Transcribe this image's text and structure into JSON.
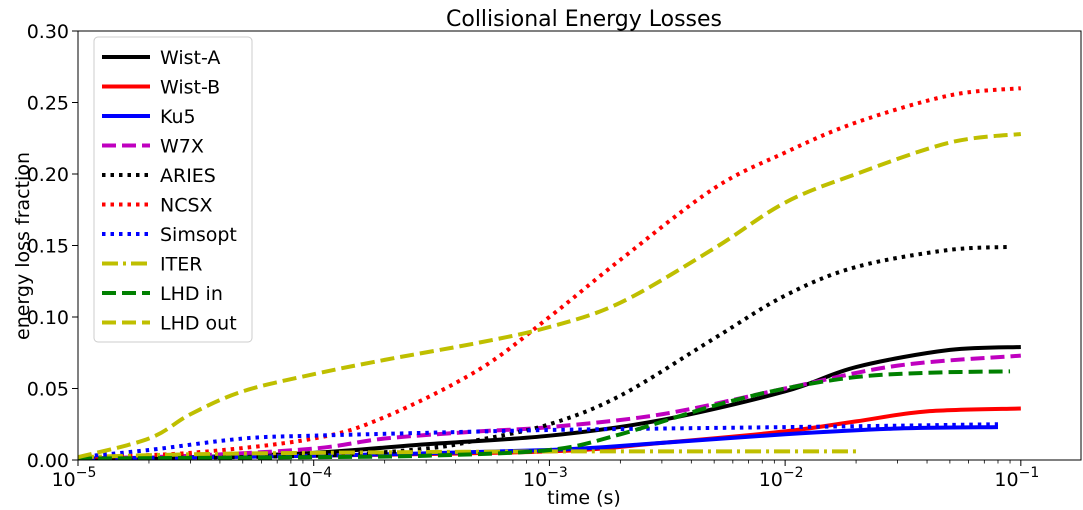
{
  "chart_data": {
    "type": "line",
    "title": "Collisional Energy Losses",
    "xlabel": "time (s)",
    "ylabel": "energy loss fraction",
    "xscale": "log",
    "xlim": [
      1e-05,
      0.18
    ],
    "ylim": [
      0.0,
      0.3
    ],
    "grid": false,
    "legend_position": "top-left",
    "x_ticks": [
      {
        "value": 1e-05,
        "base": "10",
        "exp": "−5"
      },
      {
        "value": 0.0001,
        "base": "10",
        "exp": "−4"
      },
      {
        "value": 0.001,
        "base": "10",
        "exp": "−3"
      },
      {
        "value": 0.01,
        "base": "10",
        "exp": "−2"
      },
      {
        "value": 0.1,
        "base": "10",
        "exp": "−1"
      }
    ],
    "y_ticks": [
      {
        "value": 0.0,
        "label": "0.00"
      },
      {
        "value": 0.05,
        "label": "0.05"
      },
      {
        "value": 0.1,
        "label": "0.10"
      },
      {
        "value": 0.15,
        "label": "0.15"
      },
      {
        "value": 0.2,
        "label": "0.20"
      },
      {
        "value": 0.25,
        "label": "0.25"
      },
      {
        "value": 0.3,
        "label": "0.30"
      }
    ],
    "series": [
      {
        "name": "Wist-A",
        "color": "#000000",
        "style": "solid",
        "x": [
          1e-05,
          3e-05,
          0.0001,
          0.0003,
          0.001,
          0.003,
          0.01,
          0.02,
          0.05,
          0.1
        ],
        "y": [
          0.001,
          0.002,
          0.005,
          0.011,
          0.017,
          0.028,
          0.048,
          0.065,
          0.077,
          0.079
        ]
      },
      {
        "name": "Wist-B",
        "color": "#ff0000",
        "style": "solid",
        "x": [
          1e-05,
          0.0001,
          0.001,
          0.003,
          0.01,
          0.02,
          0.04,
          0.1
        ],
        "y": [
          0.001,
          0.003,
          0.006,
          0.012,
          0.02,
          0.027,
          0.034,
          0.036
        ]
      },
      {
        "name": "Ku5",
        "color": "#0000ff",
        "style": "solid",
        "x": [
          1e-05,
          0.0001,
          0.001,
          0.003,
          0.01,
          0.03,
          0.08
        ],
        "y": [
          0.001,
          0.003,
          0.007,
          0.012,
          0.018,
          0.022,
          0.023
        ]
      },
      {
        "name": "W7X",
        "color": "#bf00bf",
        "style": "dashed",
        "x": [
          1e-05,
          3e-05,
          0.0001,
          0.0002,
          0.0005,
          0.001,
          0.003,
          0.01,
          0.03,
          0.1
        ],
        "y": [
          0.001,
          0.003,
          0.008,
          0.015,
          0.02,
          0.023,
          0.032,
          0.05,
          0.066,
          0.073
        ]
      },
      {
        "name": "ARIES",
        "color": "#000000",
        "style": "dotted",
        "x": [
          1e-05,
          0.0001,
          0.0003,
          0.0005,
          0.001,
          0.002,
          0.005,
          0.01,
          0.02,
          0.05,
          0.09
        ],
        "y": [
          0.001,
          0.003,
          0.008,
          0.014,
          0.025,
          0.045,
          0.085,
          0.115,
          0.135,
          0.147,
          0.149
        ]
      },
      {
        "name": "NCSX",
        "color": "#ff0000",
        "style": "dotted",
        "x": [
          1e-05,
          3e-05,
          0.0001,
          0.0002,
          0.0005,
          0.001,
          0.002,
          0.005,
          0.01,
          0.02,
          0.05,
          0.1
        ],
        "y": [
          0.002,
          0.005,
          0.015,
          0.03,
          0.063,
          0.1,
          0.14,
          0.19,
          0.215,
          0.236,
          0.255,
          0.26
        ]
      },
      {
        "name": "Simsopt",
        "color": "#0000ff",
        "style": "dotted",
        "x": [
          1e-05,
          2e-05,
          5e-05,
          0.0001,
          0.0003,
          0.001,
          0.003,
          0.01,
          0.03,
          0.08
        ],
        "y": [
          0.002,
          0.007,
          0.015,
          0.017,
          0.019,
          0.021,
          0.022,
          0.023,
          0.024,
          0.025
        ]
      },
      {
        "name": "ITER",
        "color": "#bfbf00",
        "style": "dashdot",
        "x": [
          1e-05,
          3e-05,
          0.0001,
          0.001,
          0.01,
          0.02
        ],
        "y": [
          0.002,
          0.004,
          0.005,
          0.006,
          0.006,
          0.006
        ]
      },
      {
        "name": "LHD in",
        "color": "#008000",
        "style": "dashed",
        "x": [
          1e-05,
          0.0001,
          0.0003,
          0.001,
          0.002,
          0.005,
          0.01,
          0.02,
          0.04,
          0.09
        ],
        "y": [
          0.001,
          0.002,
          0.003,
          0.007,
          0.018,
          0.038,
          0.05,
          0.058,
          0.061,
          0.062
        ]
      },
      {
        "name": "LHD out",
        "color": "#bfbf00",
        "style": "dashed",
        "x": [
          1e-05,
          2e-05,
          3e-05,
          5e-05,
          0.0001,
          0.0002,
          0.0005,
          0.001,
          0.002,
          0.005,
          0.01,
          0.02,
          0.05,
          0.1
        ],
        "y": [
          0.002,
          0.015,
          0.032,
          0.048,
          0.06,
          0.07,
          0.082,
          0.093,
          0.11,
          0.148,
          0.18,
          0.2,
          0.222,
          0.228
        ]
      }
    ]
  }
}
